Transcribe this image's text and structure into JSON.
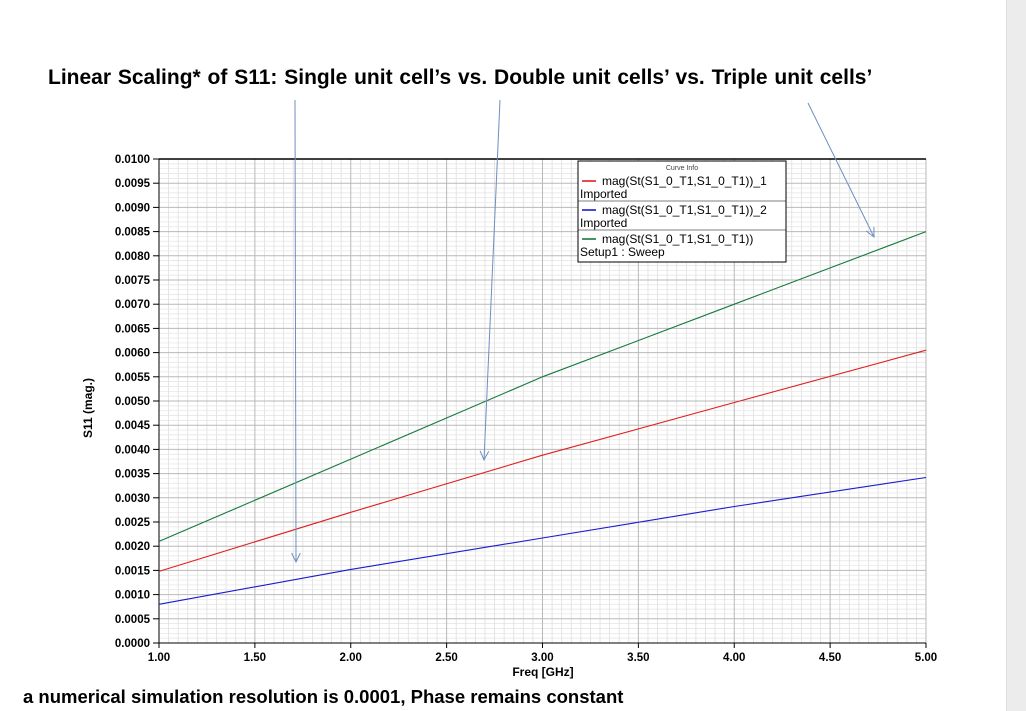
{
  "slide": {
    "title": "Linear Scaling* of S11:  Single unit cell’s   vs.  Double unit cells’  vs.  Triple unit cells’",
    "footnote": "a numerical simulation resolution is 0.0001, Phase remains constant"
  },
  "chart_data": {
    "type": "line",
    "xlabel": "Freq [GHz]",
    "ylabel": "S11  (mag.)",
    "xlim": [
      1.0,
      5.0
    ],
    "ylim": [
      0.0,
      0.01
    ],
    "x_ticks": [
      "1.00",
      "1.50",
      "2.00",
      "2.50",
      "3.00",
      "3.50",
      "4.00",
      "4.50",
      "5.00"
    ],
    "y_ticks": [
      "0.0000",
      "0.0005",
      "0.0010",
      "0.0015",
      "0.0020",
      "0.0025",
      "0.0030",
      "0.0035",
      "0.0040",
      "0.0045",
      "0.0050",
      "0.0055",
      "0.0060",
      "0.0065",
      "0.0070",
      "0.0075",
      "0.0080",
      "0.0085",
      "0.0090",
      "0.0095",
      "0.0100"
    ],
    "grid": true,
    "legend": {
      "title": "Curve Info",
      "placement": "top-center",
      "entries": [
        {
          "line1": "mag(St(S1_0_T1,S1_0_T1))_1",
          "line2": "Imported",
          "color": "#e0201e"
        },
        {
          "line1": "mag(St(S1_0_T1,S1_0_T1))_2",
          "line2": "Imported",
          "color": "#1a1ad0"
        },
        {
          "line1": "mag(St(S1_0_T1,S1_0_T1))",
          "line2": "Setup1 : Sweep",
          "color": "#157a3c"
        }
      ]
    },
    "series": [
      {
        "color": "#e0201e",
        "x": [
          1.0,
          2.0,
          3.0,
          4.0,
          5.0
        ],
        "values": [
          0.00148,
          0.0027,
          0.00388,
          0.00497,
          0.00605
        ]
      },
      {
        "color": "#1a1ad0",
        "x": [
          1.0,
          2.0,
          3.0,
          4.0,
          5.0
        ],
        "values": [
          0.0008,
          0.00152,
          0.00217,
          0.00282,
          0.00342
        ]
      },
      {
        "color": "#157a3c",
        "x": [
          1.0,
          2.0,
          3.0,
          4.0,
          5.0
        ],
        "values": [
          0.0021,
          0.0038,
          0.0055,
          0.007,
          0.0085
        ]
      }
    ]
  }
}
